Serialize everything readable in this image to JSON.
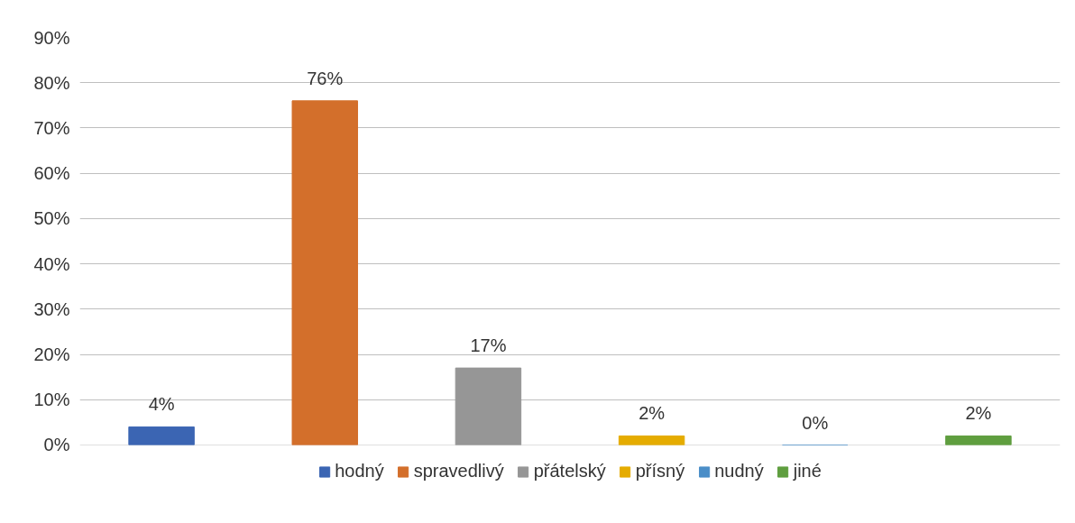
{
  "chart_data": {
    "type": "bar",
    "categories": [
      null
    ],
    "series": [
      {
        "name": "hodný",
        "color": "#3b65b3",
        "values": [
          4
        ],
        "value_labels": [
          "4%"
        ]
      },
      {
        "name": "spravedlivý",
        "color": "#d36f2b",
        "values": [
          76
        ],
        "value_labels": [
          "76%"
        ]
      },
      {
        "name": "přátelský",
        "color": "#969696",
        "values": [
          17
        ],
        "value_labels": [
          "17%"
        ]
      },
      {
        "name": "přísný",
        "color": "#e5ac00",
        "values": [
          2
        ],
        "value_labels": [
          "2%"
        ]
      },
      {
        "name": "nudný",
        "color": "#4b8ec8",
        "values": [
          0
        ],
        "value_labels": [
          "0%"
        ]
      },
      {
        "name": "jiné",
        "color": "#5f9e3f",
        "values": [
          2
        ],
        "value_labels": [
          "2%"
        ]
      }
    ],
    "ylim": [
      0,
      90
    ],
    "yticks": [
      {
        "value": 0,
        "label": "0%"
      },
      {
        "value": 10,
        "label": "10%"
      },
      {
        "value": 20,
        "label": "20%"
      },
      {
        "value": 30,
        "label": "30%"
      },
      {
        "value": 40,
        "label": "40%"
      },
      {
        "value": 50,
        "label": "50%"
      },
      {
        "value": 60,
        "label": "60%"
      },
      {
        "value": 70,
        "label": "70%"
      },
      {
        "value": 80,
        "label": "80%"
      },
      {
        "value": 90,
        "label": "90%"
      }
    ],
    "grid": "y",
    "legend": "bottom"
  }
}
